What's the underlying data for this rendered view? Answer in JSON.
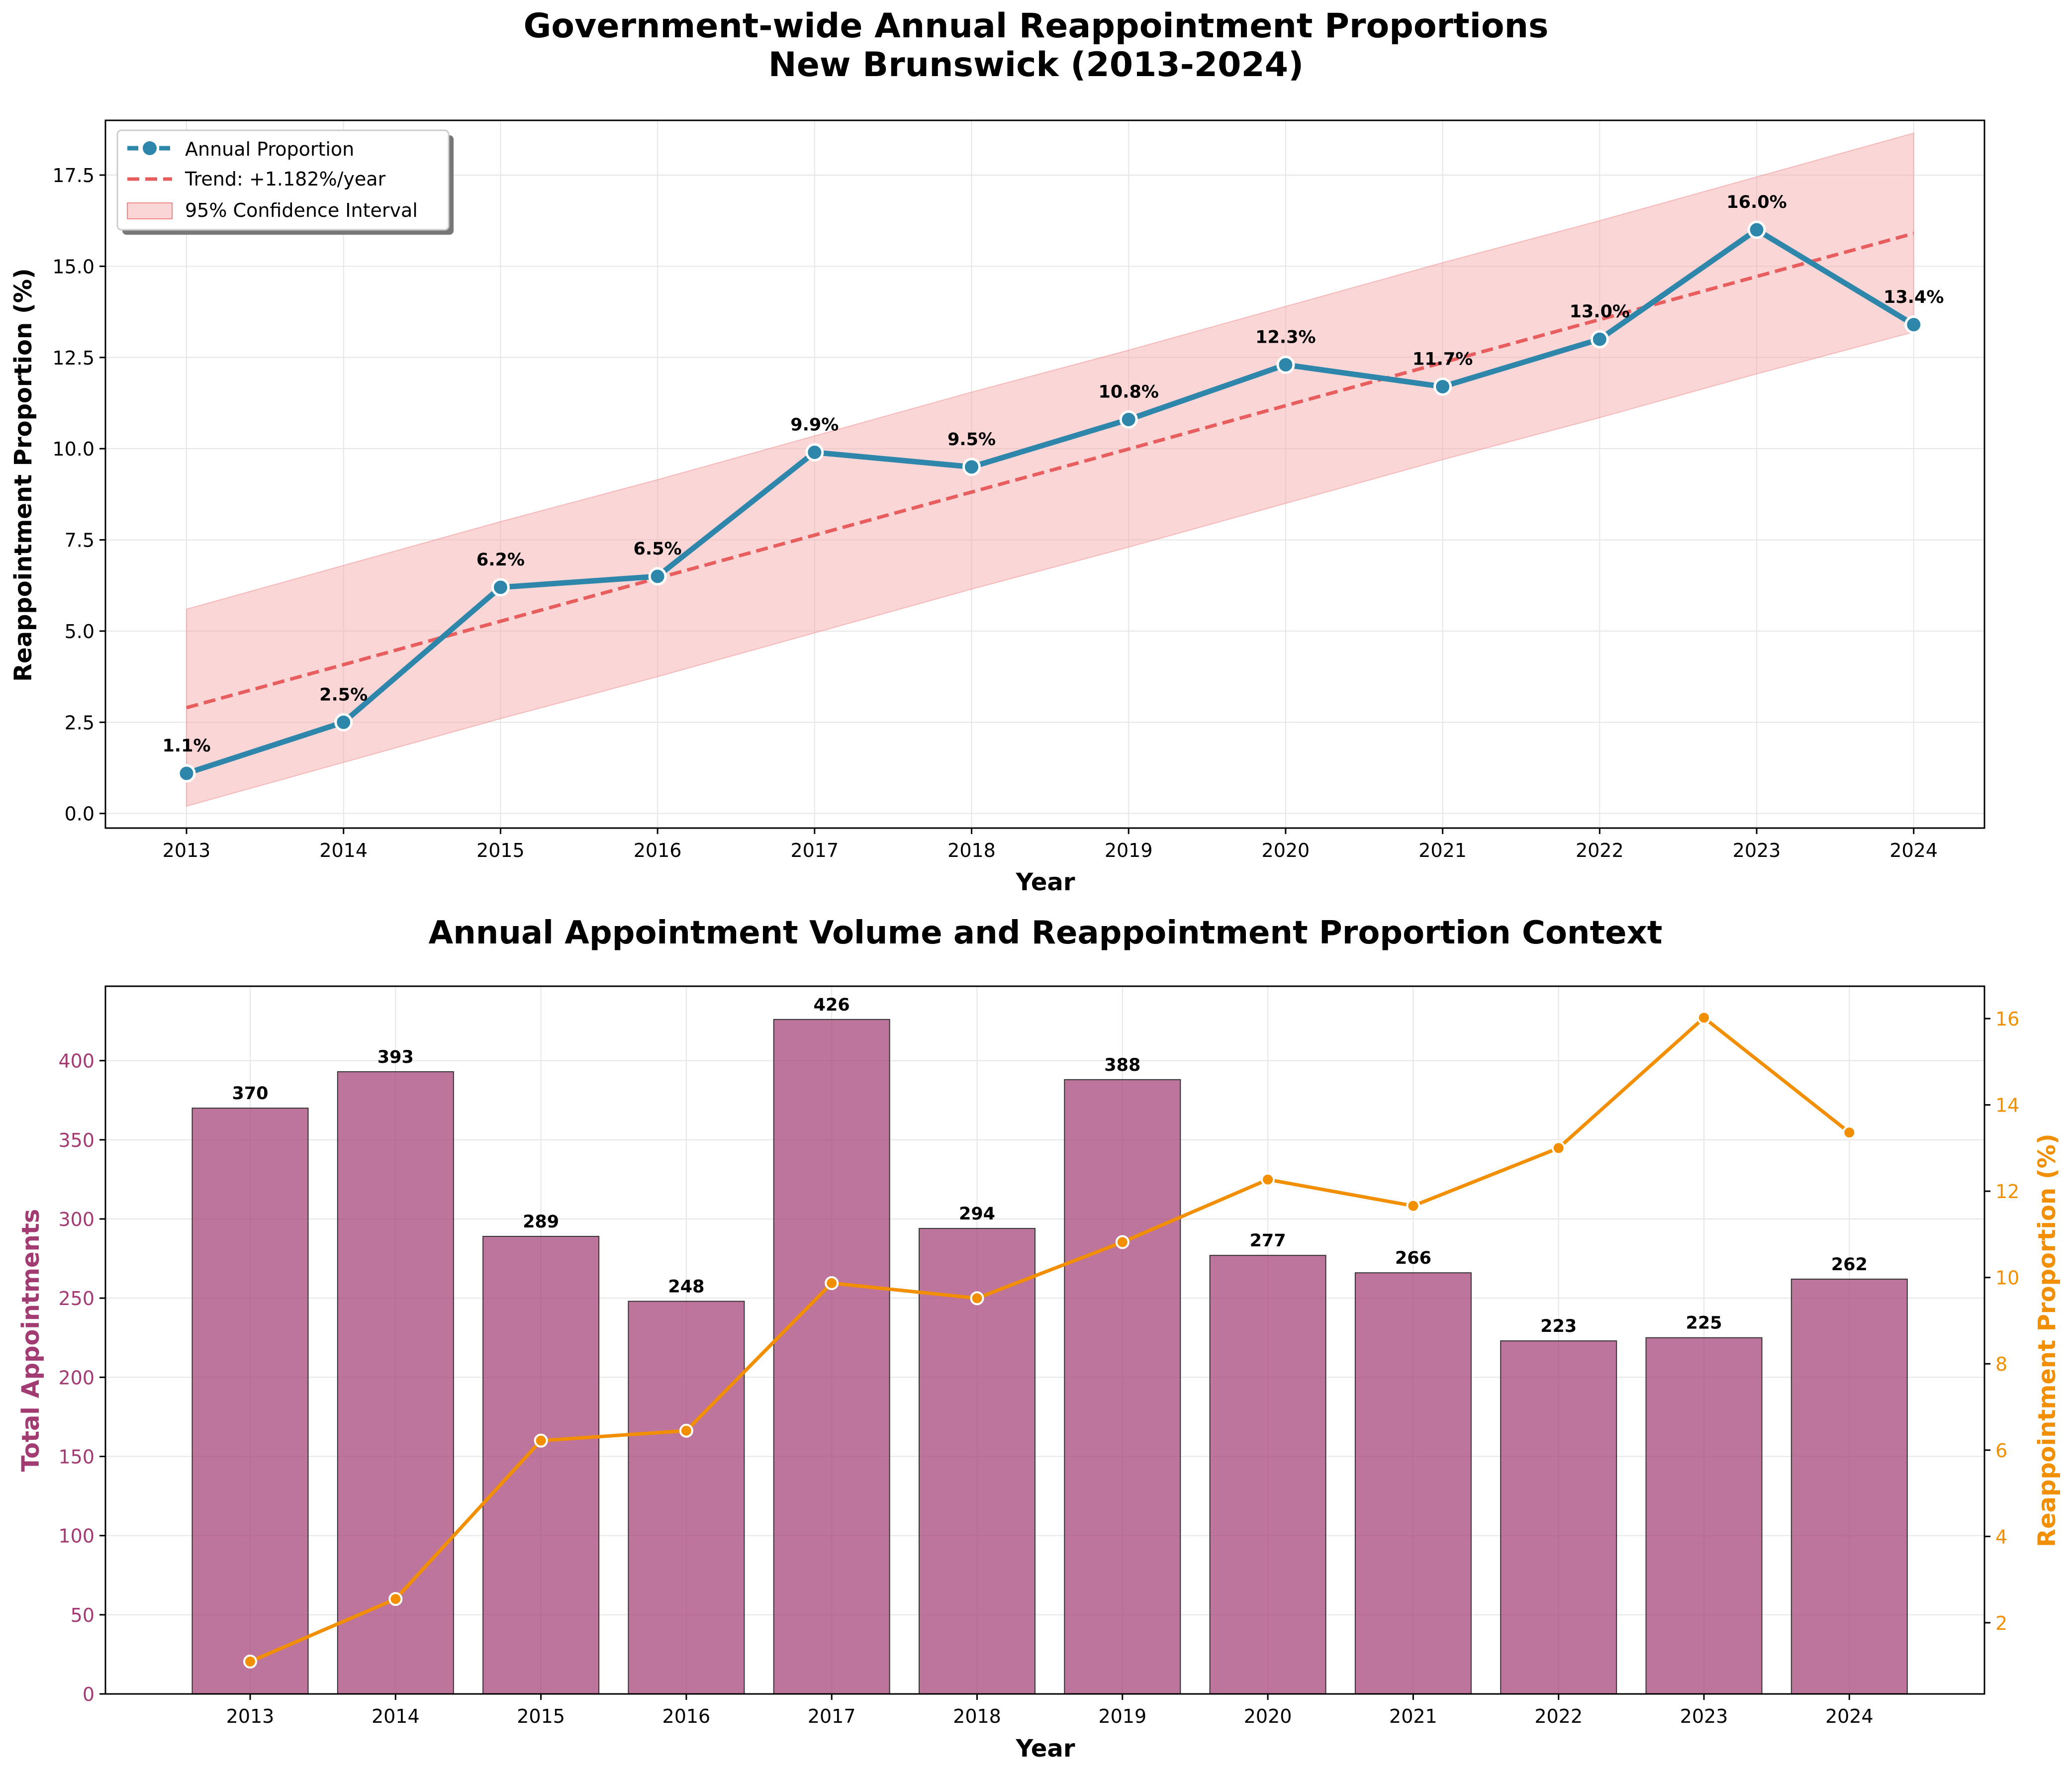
{
  "chart_data": [
    {
      "type": "line",
      "title_line1": "Government-wide Annual Reappointment Proportions",
      "title_line2": "New Brunswick (2013-2024)",
      "xlabel": "Year",
      "ylabel": "Reappointment Proportion (%)",
      "ylim": [
        -0.4,
        19.0
      ],
      "yticks": [
        "0.0",
        "2.5",
        "5.0",
        "7.5",
        "10.0",
        "12.5",
        "15.0",
        "17.5"
      ],
      "ytick_values": [
        0,
        2.5,
        5,
        7.5,
        10,
        12.5,
        15,
        17.5
      ],
      "x": [
        2013,
        2014,
        2015,
        2016,
        2017,
        2018,
        2019,
        2020,
        2021,
        2022,
        2023,
        2024
      ],
      "series": [
        {
          "name": "Annual Proportion",
          "values": [
            1.1,
            2.5,
            6.2,
            6.5,
            9.9,
            9.5,
            10.8,
            12.3,
            11.7,
            13.0,
            16.0,
            13.4
          ],
          "labels": [
            "1.1%",
            "2.5%",
            "6.2%",
            "6.5%",
            "9.9%",
            "9.5%",
            "10.8%",
            "12.3%",
            "11.7%",
            "13.0%",
            "16.0%",
            "13.4%"
          ],
          "color": "#2E86AB"
        },
        {
          "name": "Trend: +1.182%/year",
          "values": [
            2.9,
            4.08,
            5.27,
            6.45,
            7.63,
            8.81,
            9.99,
            11.18,
            12.36,
            13.54,
            14.72,
            15.9
          ],
          "color": "#E85D5D"
        }
      ],
      "confidence_band": {
        "name": "95% Confidence Interval",
        "lower": [
          0.2,
          1.4,
          2.6,
          3.75,
          4.95,
          6.15,
          7.3,
          8.5,
          9.7,
          10.85,
          12.05,
          13.2
        ],
        "upper": [
          5.6,
          6.8,
          8.0,
          9.15,
          10.35,
          11.55,
          12.7,
          13.9,
          15.1,
          16.25,
          17.45,
          18.65
        ],
        "color": "#F4A3A3"
      },
      "grid": true,
      "legend_position": "top-left"
    },
    {
      "type": "bar",
      "title": "Annual Appointment Volume and Reappointment Proportion Context",
      "xlabel": "Year",
      "ylabel": "Total Appointments",
      "ylabel_right": "Reappointment Proportion (%)",
      "ylim": [
        0,
        447
      ],
      "yticks": [
        0,
        50,
        100,
        150,
        200,
        250,
        300,
        350,
        400
      ],
      "ylim_right": [
        0.35,
        16.75
      ],
      "yticks_right": [
        2,
        4,
        6,
        8,
        10,
        12,
        14,
        16
      ],
      "categories": [
        "2013",
        "2014",
        "2015",
        "2016",
        "2017",
        "2018",
        "2019",
        "2020",
        "2021",
        "2022",
        "2023",
        "2024"
      ],
      "series": [
        {
          "values": [
            370,
            393,
            289,
            248,
            426,
            294,
            388,
            277,
            266,
            223,
            225,
            262
          ],
          "labels": [
            "370",
            "393",
            "289",
            "248",
            "426",
            "294",
            "388",
            "277",
            "266",
            "223",
            "225",
            "262"
          ],
          "color": "#A23B72",
          "axis": "left"
        },
        {
          "values": [
            1.1,
            2.55,
            6.22,
            6.45,
            9.87,
            9.52,
            10.82,
            12.27,
            11.66,
            13.0,
            16.02,
            13.36
          ],
          "color": "#F18F01",
          "axis": "right"
        }
      ],
      "grid": true
    }
  ]
}
